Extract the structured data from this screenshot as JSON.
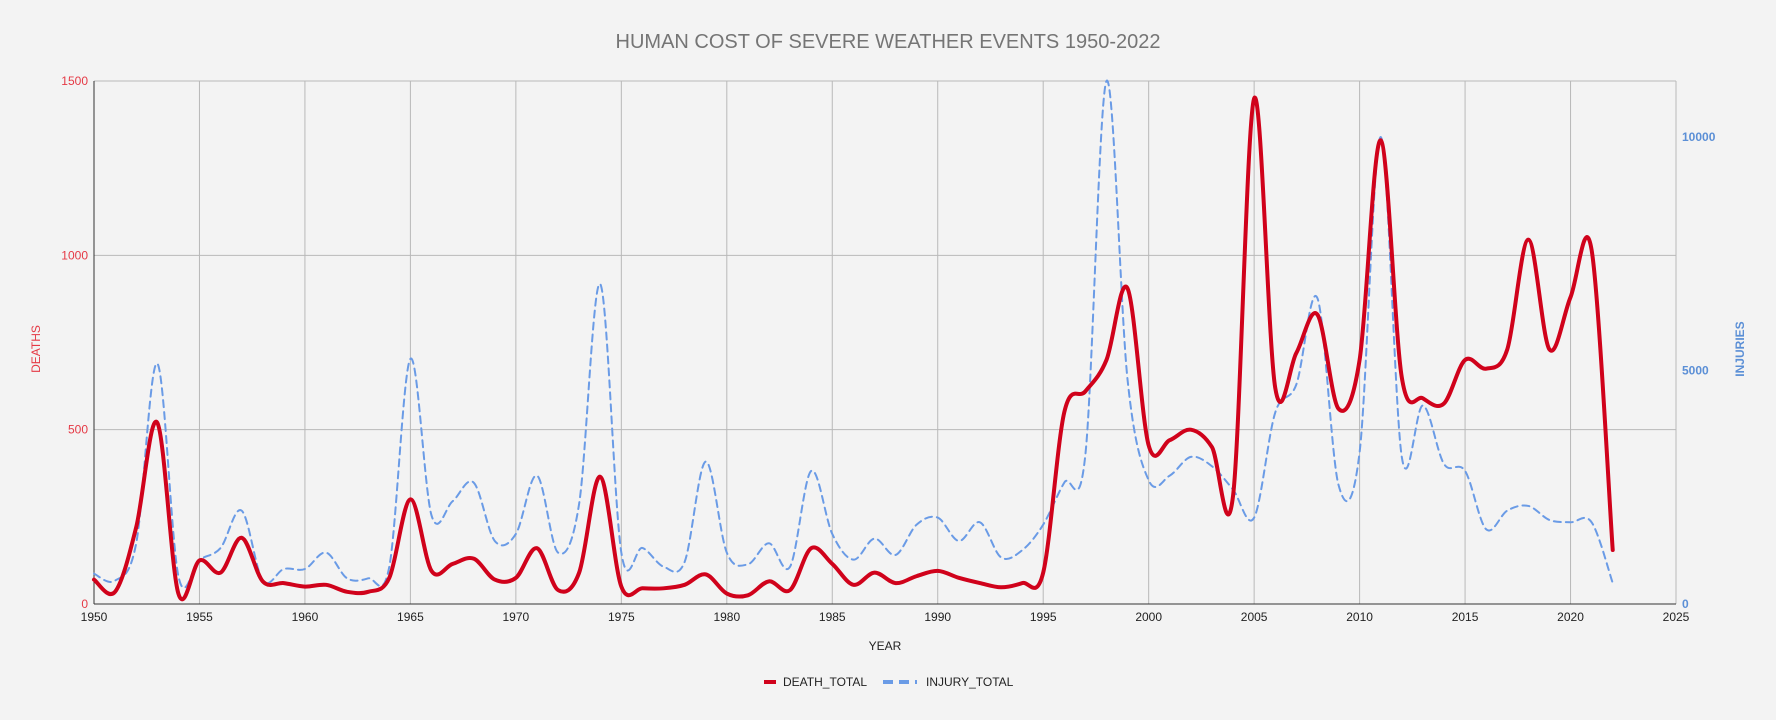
{
  "chart_data": {
    "type": "line",
    "title": "HUMAN COST OF SEVERE WEATHER EVENTS 1950-2022",
    "xlabel": "YEAR",
    "ylabel_left": "DEATHS",
    "ylabel_right": "INJURIES",
    "xlim": [
      1950,
      2025
    ],
    "ylim_left": [
      0,
      1500
    ],
    "ylim_right": [
      0,
      11200
    ],
    "x_ticks": [
      1950,
      1955,
      1960,
      1965,
      1970,
      1975,
      1980,
      1985,
      1990,
      1995,
      2000,
      2005,
      2010,
      2015,
      2020,
      2025
    ],
    "y_ticks_left": [
      0,
      500,
      1000,
      1500
    ],
    "y_ticks_right": [
      0,
      5000,
      10000
    ],
    "grid": true,
    "legend_position": "bottom",
    "colors": {
      "deaths": "#d0021b",
      "injuries": "#6a9be6",
      "left_axis": "#e53945",
      "right_axis": "#5b8fd6"
    },
    "x": [
      1950,
      1951,
      1952,
      1953,
      1954,
      1955,
      1956,
      1957,
      1958,
      1959,
      1960,
      1961,
      1962,
      1963,
      1964,
      1965,
      1966,
      1967,
      1968,
      1969,
      1970,
      1971,
      1972,
      1973,
      1974,
      1975,
      1976,
      1977,
      1978,
      1979,
      1980,
      1981,
      1982,
      1983,
      1984,
      1985,
      1986,
      1987,
      1988,
      1989,
      1990,
      1991,
      1992,
      1993,
      1994,
      1995,
      1996,
      1997,
      1998,
      1999,
      2000,
      2001,
      2002,
      2003,
      2004,
      2005,
      2006,
      2007,
      2008,
      2009,
      2010,
      2011,
      2012,
      2013,
      2014,
      2015,
      2016,
      2017,
      2018,
      2019,
      2020,
      2021,
      2022
    ],
    "series": [
      {
        "name": "DEATH_TOTAL",
        "axis": "left",
        "style": "solid",
        "values": [
          70,
          35,
          220,
          520,
          30,
          125,
          90,
          190,
          65,
          60,
          50,
          55,
          35,
          35,
          75,
          300,
          95,
          115,
          130,
          70,
          75,
          160,
          40,
          90,
          365,
          50,
          45,
          45,
          55,
          85,
          30,
          25,
          65,
          40,
          160,
          115,
          55,
          90,
          60,
          80,
          95,
          75,
          60,
          48,
          60,
          90,
          550,
          610,
          700,
          905,
          455,
          470,
          500,
          450,
          310,
          1450,
          620,
          720,
          830,
          560,
          700,
          1330,
          650,
          590,
          575,
          700,
          675,
          730,
          1045,
          730,
          880,
          1015,
          155
        ]
      },
      {
        "name": "INJURY_TOTAL",
        "axis": "right",
        "style": "dashed",
        "values": [
          650,
          500,
          1300,
          5150,
          600,
          950,
          1200,
          2000,
          500,
          750,
          750,
          1100,
          550,
          550,
          800,
          5250,
          1900,
          2200,
          2600,
          1350,
          1500,
          2750,
          1100,
          2150,
          6850,
          1100,
          1200,
          800,
          900,
          3050,
          1100,
          850,
          1300,
          800,
          2850,
          1500,
          950,
          1400,
          1050,
          1700,
          1850,
          1350,
          1750,
          1000,
          1150,
          1700,
          2600,
          3200,
          11200,
          4800,
          2650,
          2750,
          3150,
          2950,
          2450,
          1850,
          4100,
          4700,
          6550,
          2550,
          3250,
          10000,
          3150,
          4250,
          3000,
          2850,
          1600,
          2000,
          2100,
          1800,
          1750,
          1750,
          450
        ]
      }
    ]
  }
}
